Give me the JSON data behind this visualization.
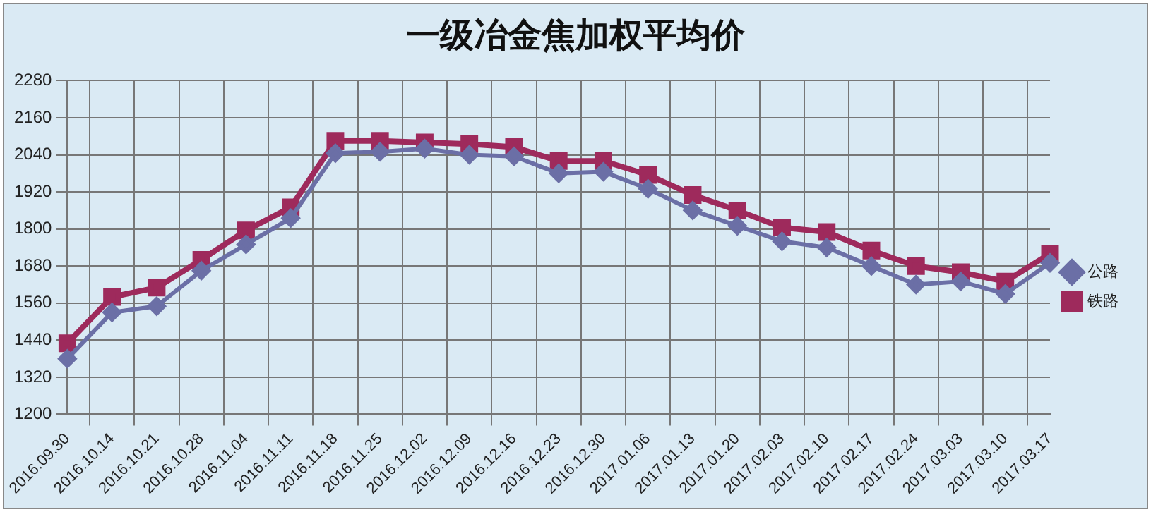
{
  "chart_data": {
    "type": "line",
    "title": "一级冶金焦加权平均价",
    "categories": [
      "2016.09.30",
      "2016.10.14",
      "2016.10.21",
      "2016.10.28",
      "2016.11.04",
      "2016.11.11",
      "2016.11.18",
      "2016.11.25",
      "2016.12.02",
      "2016.12.09",
      "2016.12.16",
      "2016.12.23",
      "2016.12.30",
      "2017.01.06",
      "2017.01.13",
      "2017.01.20",
      "2017.02.03",
      "2017.02.10",
      "2017.02.17",
      "2017.02.24",
      "2017.03.03",
      "2017.03.10",
      "2017.03.17"
    ],
    "series": [
      {
        "name": "公路",
        "color": "#6b6fa6",
        "marker": "diamond",
        "values": [
          1380,
          1530,
          1550,
          1665,
          1750,
          1835,
          2045,
          2050,
          2060,
          2040,
          2035,
          1980,
          1985,
          1930,
          1860,
          1810,
          1760,
          1740,
          1680,
          1620,
          1630,
          1590,
          1690
        ]
      },
      {
        "name": "铁路",
        "color": "#9e2a5c",
        "marker": "square",
        "values": [
          1430,
          1580,
          1610,
          1700,
          1795,
          1870,
          2085,
          2085,
          2080,
          2075,
          2065,
          2020,
          2020,
          1975,
          1910,
          1860,
          1805,
          1790,
          1730,
          1680,
          1660,
          1630,
          1720
        ]
      }
    ],
    "ylim": [
      1200,
      2280
    ],
    "yticks": [
      1200,
      1320,
      1440,
      1560,
      1680,
      1800,
      1920,
      2040,
      2160,
      2280
    ],
    "grid": true,
    "legend": "right",
    "line_style": "solid"
  }
}
